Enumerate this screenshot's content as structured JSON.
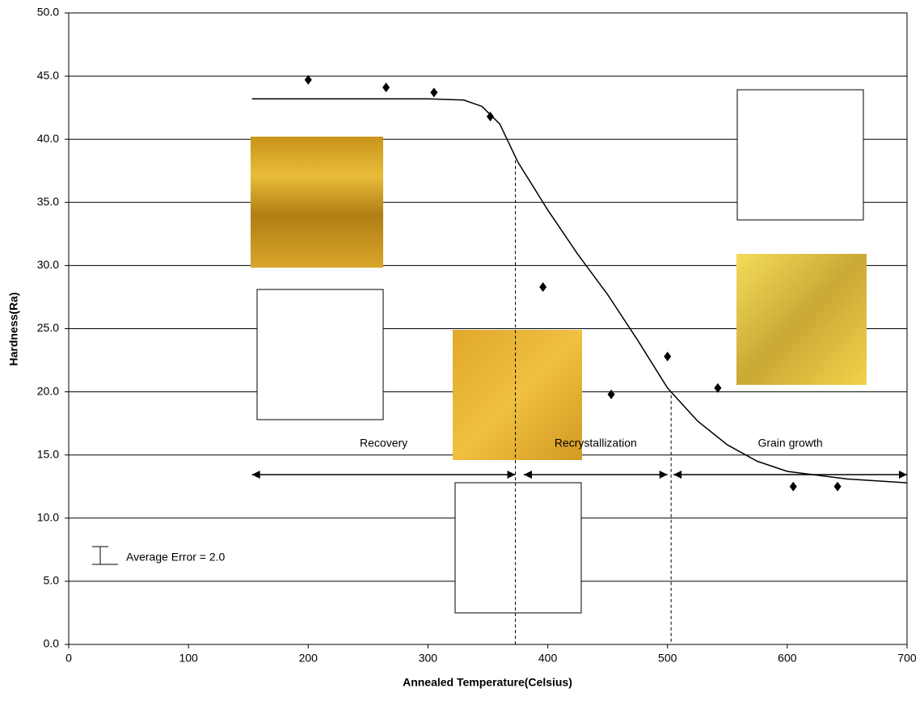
{
  "chart_data": {
    "type": "scatter",
    "x_label": "Annealed Temperature(Celsius)",
    "y_label": "Hardness(Ra)",
    "xlim": [
      0,
      700
    ],
    "ylim": [
      0,
      50
    ],
    "xticks": [
      0,
      100,
      200,
      300,
      400,
      500,
      600,
      700
    ],
    "yticks": [
      {
        "value": 0,
        "label": "0.0"
      },
      {
        "value": 5,
        "label": "5.0"
      },
      {
        "value": 10,
        "label": "10.0"
      },
      {
        "value": 15,
        "label": "15.0"
      },
      {
        "value": 20,
        "label": "20.0"
      },
      {
        "value": 25,
        "label": "25.0"
      },
      {
        "value": 30,
        "label": "30.0"
      },
      {
        "value": 35,
        "label": "35.0"
      },
      {
        "value": 40,
        "label": "40.0"
      },
      {
        "value": 45,
        "label": "45.0"
      },
      {
        "value": 50,
        "label": "50.0"
      }
    ],
    "grid": true,
    "points": {
      "color": "#000000",
      "x": [
        200,
        265,
        305,
        352,
        396,
        453,
        500,
        542,
        605,
        642
      ],
      "values": [
        44.7,
        44.1,
        43.7,
        41.8,
        28.3,
        19.8,
        22.8,
        20.3,
        12.5,
        12.5
      ]
    },
    "fit": {
      "color": "#000000",
      "x": [
        153,
        250,
        300,
        330,
        345,
        360,
        375,
        400,
        425,
        450,
        475,
        500,
        525,
        550,
        575,
        600,
        650,
        700
      ],
      "values": [
        43.2,
        43.2,
        43.2,
        43.1,
        42.6,
        41.2,
        38.2,
        34.4,
        30.9,
        27.7,
        24.1,
        20.3,
        17.7,
        15.8,
        14.5,
        13.7,
        13.1,
        12.8
      ]
    },
    "phases": [
      {
        "label": "Recovery",
        "range": [
          153,
          373
        ]
      },
      {
        "label": "Recrystallization",
        "range": [
          380,
          500
        ]
      },
      {
        "label": "Grain growth",
        "range": [
          505,
          700
        ]
      }
    ],
    "boundaries": [
      373,
      503
    ],
    "error_note": "Average Error = 2.0"
  }
}
